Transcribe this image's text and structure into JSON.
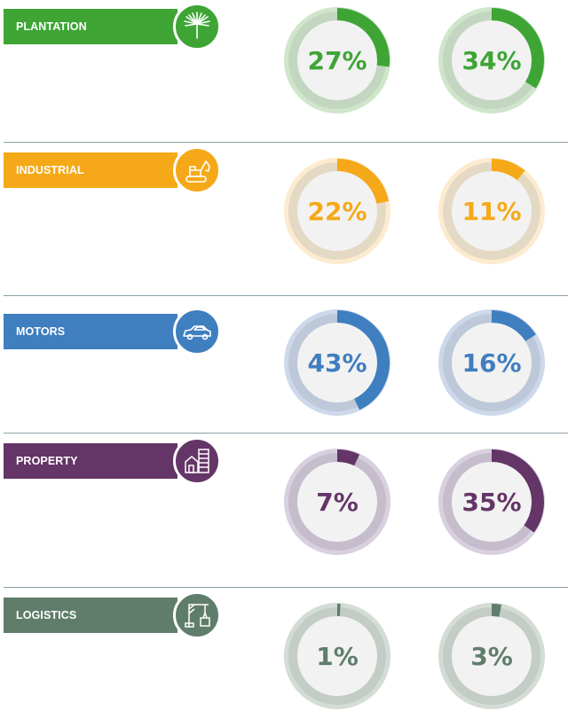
{
  "chart_data": {
    "type": "donut",
    "segments": [
      {
        "name": "PLANTATION",
        "icon": "palm-leaf-icon",
        "color": "#3ea535",
        "track": "#cfe6cb",
        "inner_track": "#c2d6c0",
        "values": [
          27,
          34
        ],
        "labels": [
          "27%",
          "34%"
        ]
      },
      {
        "name": "INDUSTRIAL",
        "icon": "excavator-icon",
        "color": "#f5a918",
        "track": "#fcebcf",
        "inner_track": "#e4d9c4",
        "values": [
          22,
          11
        ],
        "labels": [
          "22%",
          "11%"
        ]
      },
      {
        "name": "MOTORS",
        "icon": "car-icon",
        "color": "#3f7ebf",
        "track": "#cdd9eb",
        "inner_track": "#bdc8d8",
        "values": [
          43,
          16
        ],
        "labels": [
          "43%",
          "16%"
        ]
      },
      {
        "name": "PROPERTY",
        "icon": "buildings-icon",
        "color": "#643567",
        "track": "#d8cfdf",
        "inner_track": "#c6bdcc",
        "values": [
          7,
          35
        ],
        "labels": [
          "7%",
          "35%"
        ]
      },
      {
        "name": "LOGISTICS",
        "icon": "crane-icon",
        "color": "#607d6c",
        "track": "#d4dcd6",
        "inner_track": "#c4ccc6",
        "values": [
          1,
          3
        ],
        "labels": [
          "1%",
          "3%"
        ]
      }
    ]
  }
}
